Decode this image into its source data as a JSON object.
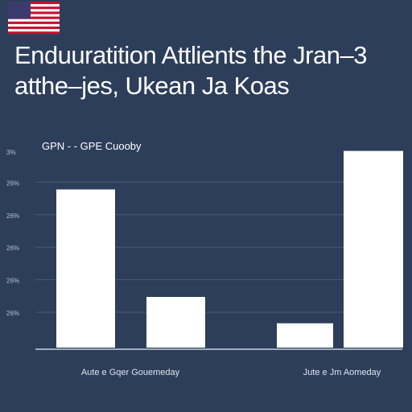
{
  "header": {
    "title_line1": "Enduuratition Attlients the Jran–3",
    "title_line2": "atthe–jes, Ukean Ja Koas",
    "flag_icon": "us-flag-icon"
  },
  "chart_data": {
    "type": "bar",
    "title": "",
    "legend_label": "GPN - - GPE Cuooby",
    "ytick_labels": [
      "3%",
      "26%",
      "26%",
      "26%",
      "26%",
      "26%"
    ],
    "ylim": [
      0,
      100
    ],
    "grid": true,
    "groups": [
      {
        "label": "Aute e Gqer Gouemeday",
        "bars": [
          {
            "value": 78
          },
          {
            "value": 25
          }
        ]
      },
      {
        "label": "Jute e Jm Aomeday",
        "bars": [
          {
            "value": 12
          },
          {
            "value": 97
          }
        ]
      }
    ],
    "colors": {
      "bar": "#ffffff",
      "grid": "#4a5a76",
      "axis": "#c8d0dc",
      "tick_text": "#b7c0cf"
    }
  }
}
